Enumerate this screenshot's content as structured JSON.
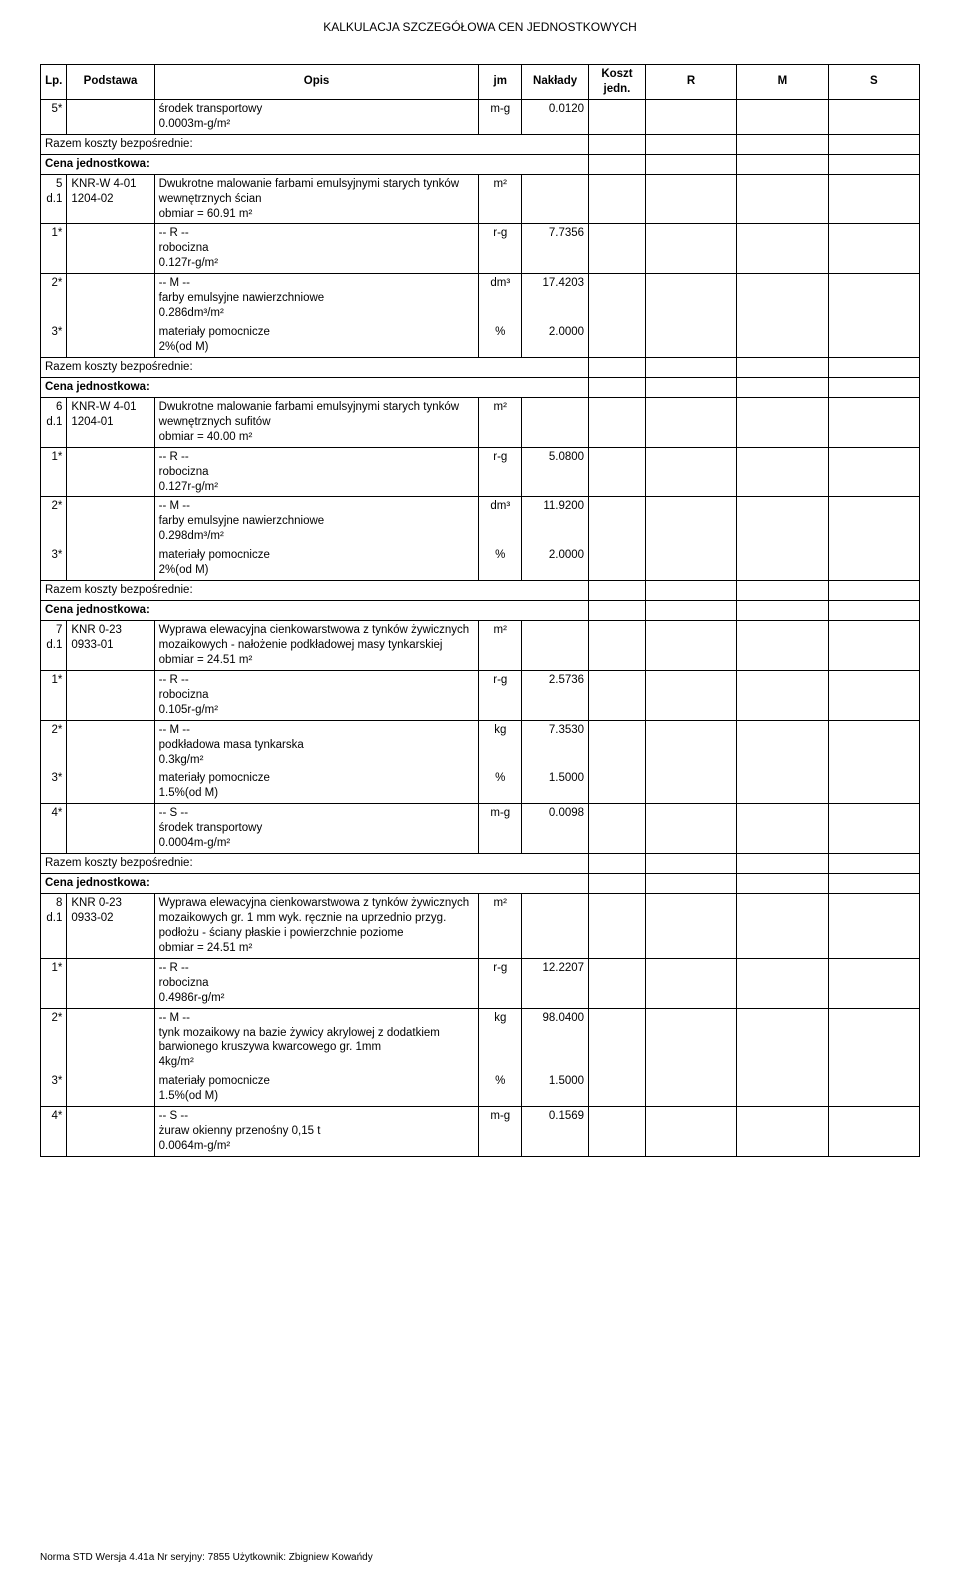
{
  "doc_title": "KALKULACJA SZCZEGÓŁOWA CEN JEDNOSTKOWYCH",
  "headers": {
    "lp": "Lp.",
    "podstawa": "Podstawa",
    "opis": "Opis",
    "jm": "jm",
    "naklady": "Nakłady",
    "koszt": "Koszt jedn.",
    "r": "R",
    "m": "M",
    "s": "S"
  },
  "razem_label": "Razem koszty bezpośrednie:",
  "cena_label": "Cena jednostkowa:",
  "rows": [
    {
      "type": "data",
      "lp": "5*",
      "opis": "środek transportowy\n0.0003m-g/m²",
      "jm": "m-g",
      "nak": "0.0120",
      "tb": true
    },
    {
      "type": "razem"
    },
    {
      "type": "cena"
    },
    {
      "type": "section",
      "lp": "5\nd.1",
      "pod": "KNR-W 4-01\n1204-02",
      "opis": "Dwukrotne malowanie farbami emulsyjnymi starych tynków wewnętrznych ścian\nobmiar  = 60.91 m²",
      "jm": "m²"
    },
    {
      "type": "data",
      "lp": "1*",
      "opis": "-- R --\nrobocizna\n0.127r-g/m²",
      "jm": "r-g",
      "nak": "7.7356"
    },
    {
      "type": "data",
      "lp": "2*",
      "opis": "-- M --\nfarby emulsyjne nawierzchniowe\n0.286dm³/m²",
      "jm": "dm³",
      "nak": "17.4203",
      "nb": true
    },
    {
      "type": "data",
      "lp": "3*",
      "opis": "materiały pomocnicze\n2%(od M)",
      "jm": "%",
      "nak": "2.0000",
      "tb": true
    },
    {
      "type": "razem"
    },
    {
      "type": "cena"
    },
    {
      "type": "section",
      "lp": "6\nd.1",
      "pod": "KNR-W 4-01\n1204-01",
      "opis": "Dwukrotne malowanie farbami emulsyjnymi starych tynków wewnętrznych sufitów\nobmiar  = 40.00 m²",
      "jm": "m²"
    },
    {
      "type": "data",
      "lp": "1*",
      "opis": "-- R --\nrobocizna\n0.127r-g/m²",
      "jm": "r-g",
      "nak": "5.0800"
    },
    {
      "type": "data",
      "lp": "2*",
      "opis": "-- M --\nfarby emulsyjne nawierzchniowe\n0.298dm³/m²",
      "jm": "dm³",
      "nak": "11.9200",
      "nb": true
    },
    {
      "type": "data",
      "lp": "3*",
      "opis": "materiały pomocnicze\n2%(od M)",
      "jm": "%",
      "nak": "2.0000",
      "tb": true
    },
    {
      "type": "razem"
    },
    {
      "type": "cena"
    },
    {
      "type": "section",
      "lp": "7\nd.1",
      "pod": "KNR 0-23\n0933-01",
      "opis": "Wyprawa elewacyjna cienkowarstwowa z tynków żywicznych mozaikowych - nałożenie podkładowej masy tynkarskiej\nobmiar  = 24.51 m²",
      "jm": "m²"
    },
    {
      "type": "data",
      "lp": "1*",
      "opis": "-- R --\nrobocizna\n0.105r-g/m²",
      "jm": "r-g",
      "nak": "2.5736"
    },
    {
      "type": "data",
      "lp": "2*",
      "opis": "-- M --\npodkładowa masa tynkarska\n0.3kg/m²",
      "jm": "kg",
      "nak": "7.3530",
      "nb": true
    },
    {
      "type": "data",
      "lp": "3*",
      "opis": "materiały pomocnicze\n1.5%(od M)",
      "jm": "%",
      "nak": "1.5000",
      "tb": true
    },
    {
      "type": "data",
      "lp": "4*",
      "opis": "-- S --\nśrodek transportowy\n0.0004m-g/m²",
      "jm": "m-g",
      "nak": "0.0098"
    },
    {
      "type": "razem"
    },
    {
      "type": "cena"
    },
    {
      "type": "section",
      "lp": "8\nd.1",
      "pod": "KNR 0-23\n0933-02",
      "opis": "Wyprawa elewacyjna cienkowarstwowa z tynków żywicznych mozaikowych gr. 1 mm wyk. ręcznie na uprzednio przyg. podłożu - ściany płaskie i powierzchnie poziome\nobmiar  = 24.51 m²",
      "jm": "m²"
    },
    {
      "type": "data",
      "lp": "1*",
      "opis": "-- R --\nrobocizna\n0.4986r-g/m²",
      "jm": "r-g",
      "nak": "12.2207"
    },
    {
      "type": "data",
      "lp": "2*",
      "opis": "-- M --\ntynk mozaikowy na bazie żywicy akrylowej z dodatkiem barwionego kruszywa kwarcowego gr. 1mm\n4kg/m²",
      "jm": "kg",
      "nak": "98.0400",
      "nb": true
    },
    {
      "type": "data",
      "lp": "3*",
      "opis": "materiały pomocnicze\n1.5%(od M)",
      "jm": "%",
      "nak": "1.5000",
      "tb": true
    },
    {
      "type": "data",
      "lp": "4*",
      "opis": "-- S --\nżuraw okienny przenośny 0,15 t\n0.0064m-g/m²",
      "jm": "m-g",
      "nak": "0.1569"
    }
  ],
  "footer": "Norma STD Wersja 4.41a Nr seryjny: 7855 Użytkownik: Zbigniew Kowańdy"
}
